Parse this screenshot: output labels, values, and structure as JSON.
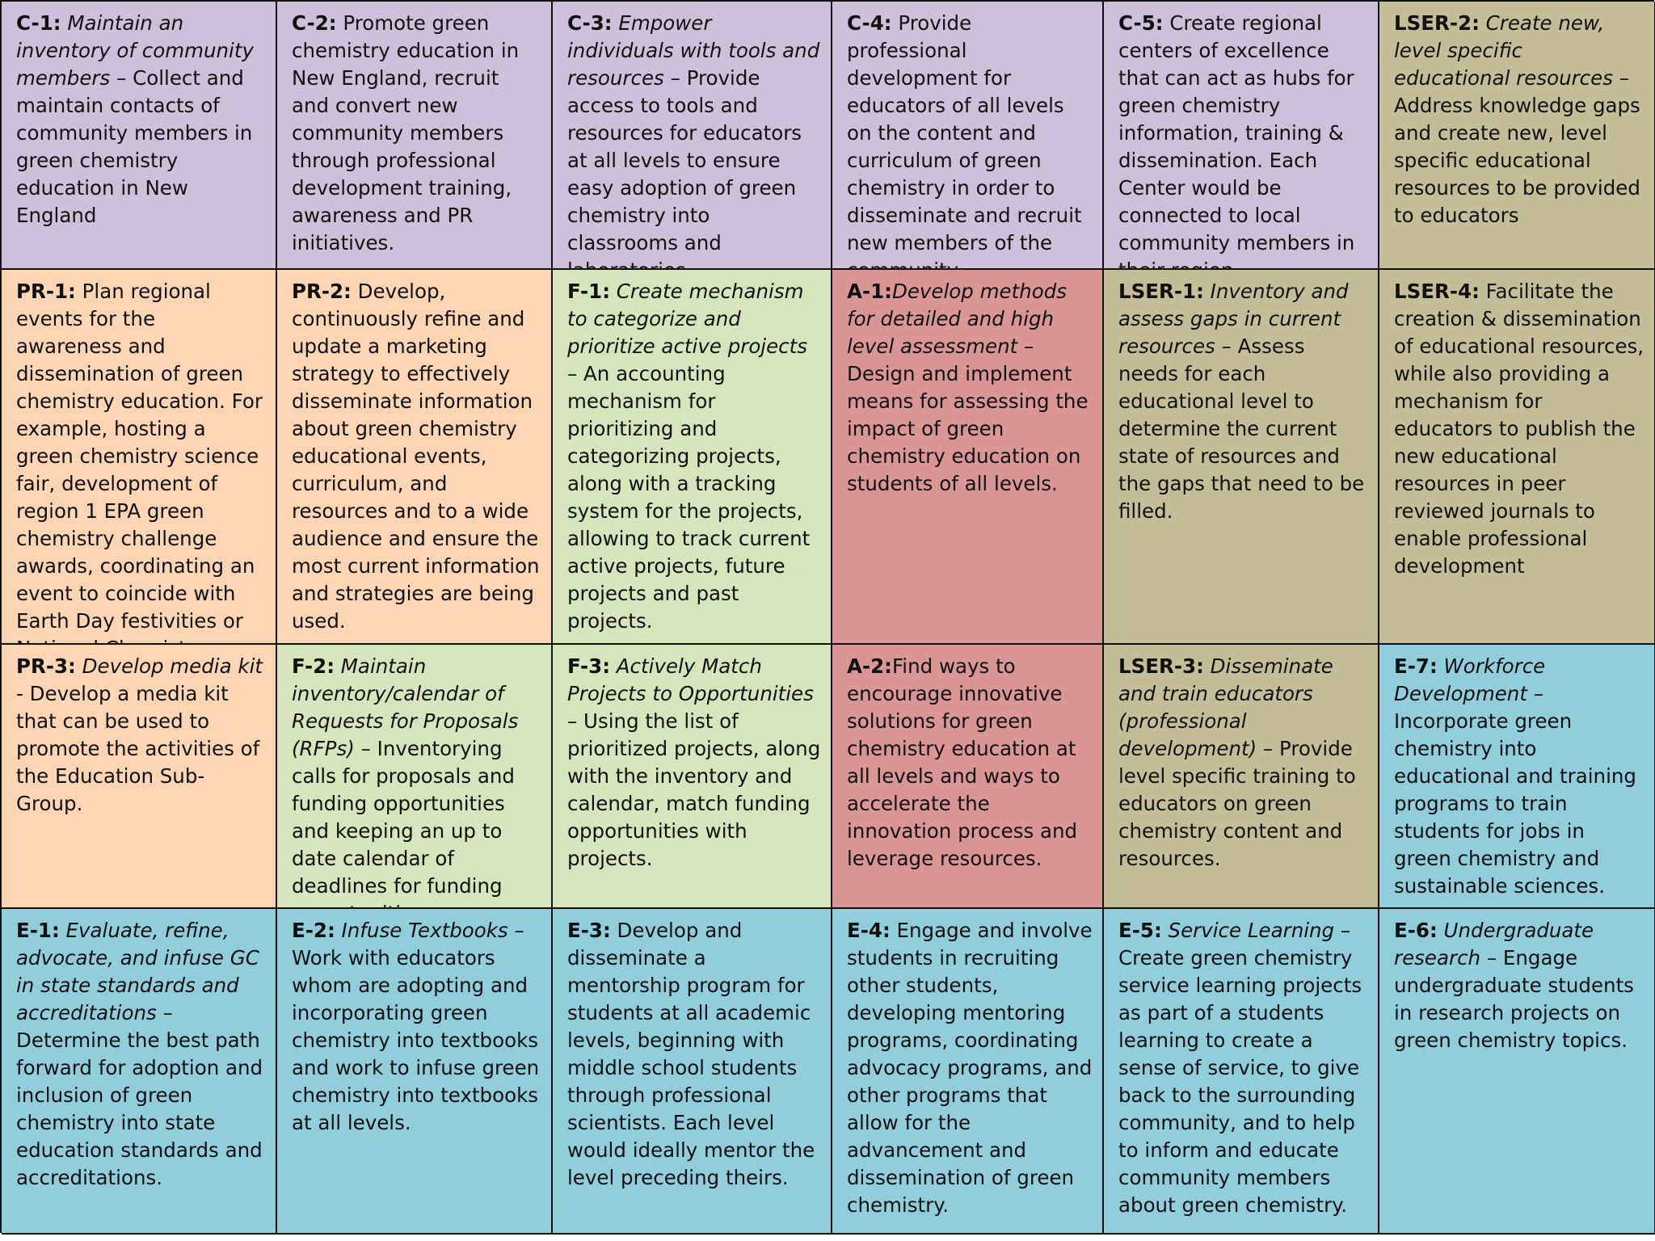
{
  "colors": {
    "purple": "#ccc0da",
    "khaki": "#c4bd97",
    "peach": "#fcd5b4",
    "green": "#d8e4bc",
    "rose": "#da9694",
    "blue": "#92cddc",
    "border": "#111111"
  },
  "cells": [
    {
      "code": "C-1:",
      "lead": "Maintain an inventory of community members",
      "sep": " – ",
      "body": "Collect and maintain contacts of community members in green chemistry education in New England",
      "color": "purple"
    },
    {
      "code": "C-2:",
      "lead": "",
      "sep": " ",
      "body": "Promote green chemistry education in New England, recruit and convert new community members through professional development training, awareness and PR initiatives.",
      "color": "purple"
    },
    {
      "code": "C-3:",
      "lead": "Empower individuals with tools and resources",
      "sep": " – ",
      "body": "Provide access to tools and resources for educators at all levels to ensure easy adoption of green chemistry into classrooms and laboratories",
      "color": "purple"
    },
    {
      "code": "C-4:",
      "lead": "",
      "sep": " ",
      "body": "Provide professional development for educators of all levels on the content and curriculum of green chemistry in order to disseminate and recruit new members of the community.",
      "color": "purple"
    },
    {
      "code": "C-5:",
      "lead": "",
      "sep": " ",
      "body": "Create regional centers of excellence that can act as hubs for green chemistry information, training & dissemination. Each Center would be connected to local community members in their region.",
      "color": "purple"
    },
    {
      "code": "LSER-2:",
      "lead": "Create new, level specific educational resources",
      "sep": " – ",
      "body": "Address knowledge gaps and create new, level specific educational resources to be provided to educators",
      "color": "khaki"
    },
    {
      "code": "PR-1:",
      "lead": "",
      "sep": " ",
      "body": "Plan regional events for the awareness and dissemination of green chemistry education. For example, hosting a green chemistry science fair, development of region 1 EPA green chemistry challenge awards, coordinating an event to coincide with Earth Day festivities or National Chemistry week,",
      "color": "peach"
    },
    {
      "code": "PR-2:",
      "lead": "",
      "sep": " ",
      "body": "Develop, continuously refine and update a marketing strategy to effectively disseminate information about green chemistry educational events, curriculum, and resources and to a wide audience and ensure the most current information and strategies are being used.",
      "color": "peach"
    },
    {
      "code": "F-1:",
      "lead": "Create mechanism to categorize and prioritize active projects",
      "sep": " – ",
      "body": "An accounting mechanism for prioritizing and categorizing projects, along with a tracking system for the projects, allowing to track current active projects, future projects and past projects.",
      "color": "green"
    },
    {
      "code": "A-1:",
      "lead": "Develop methods for detailed and high level assessment",
      "sep": " – ",
      "body": "Design and implement means for assessing the impact of green chemistry education on students of all levels.",
      "color": "rose"
    },
    {
      "code": "LSER-1:",
      "lead": "Inventory and assess gaps in current resources",
      "sep": " – ",
      "body": "Assess needs for each educational level to determine the current state of resources and the gaps that need to be filled.",
      "color": "khaki"
    },
    {
      "code": "LSER-4:",
      "lead": "",
      "sep": " ",
      "body": "Facilitate the creation & dissemination of educational resources, while also providing a mechanism for educators to publish the new educational resources in peer reviewed journals to enable professional development",
      "color": "khaki"
    },
    {
      "code": "PR-3:",
      "lead": "Develop media kit",
      "sep": "  - ",
      "body": "Develop a media kit that can be used to promote the activities of the Education Sub-Group.",
      "color": "peach"
    },
    {
      "code": "F-2:",
      "lead": "Maintain inventory/calendar of Requests for Proposals (RFPs)",
      "sep": " – ",
      "body": "Inventorying calls for proposals and funding opportunities and keeping an up to date calendar of deadlines for funding opportunities.",
      "color": "green"
    },
    {
      "code": "F-3:",
      "lead": "Actively Match Projects to Opportunities",
      "sep": " – ",
      "body": "Using the list of prioritized projects, along with the inventory and calendar, match funding opportunities with projects.",
      "color": "green"
    },
    {
      "code": "A-2:",
      "lead": "",
      "sep": "",
      "body": "Find ways to encourage innovative solutions for green chemistry education at all levels and ways to accelerate the innovation process and leverage resources.",
      "color": "rose"
    },
    {
      "code": "LSER-3:",
      "lead": "Disseminate and train educators (professional development)",
      "sep": " – ",
      "body": "Provide level specific training to educators on green chemistry content and resources.",
      "color": "khaki"
    },
    {
      "code": "E-7:",
      "lead": "Workforce Development",
      "sep": " – ",
      "body": "Incorporate green chemistry into educational and training programs to train students for jobs in green chemistry and sustainable sciences.",
      "color": "blue"
    },
    {
      "code": "E-1:",
      "lead": "Evaluate, refine, advocate, and infuse GC in state standards and accreditations",
      "sep": " – ",
      "body": "Determine the best path forward for adoption and inclusion of green chemistry into state education standards and accreditations.",
      "color": "blue"
    },
    {
      "code": "E-2:",
      "lead": "Infuse Textbooks",
      "sep": " – ",
      "body": "Work with educators whom are adopting and incorporating green chemistry into textbooks and work to infuse green chemistry into textbooks at all levels.",
      "color": "blue"
    },
    {
      "code": "E-3:",
      "lead": "",
      "sep": " ",
      "body": "Develop and disseminate a mentorship program for students at all academic levels, beginning with middle school students through professional scientists. Each level would ideally mentor the level preceding theirs.",
      "color": "blue"
    },
    {
      "code": "E-4:",
      "lead": "",
      "sep": " ",
      "body": "Engage and involve students in recruiting other students, developing mentoring programs, coordinating advocacy programs, and other programs that allow for the advancement and dissemination of green chemistry.",
      "color": "blue"
    },
    {
      "code": "E-5:",
      "lead": "Service Learning",
      "sep": " – ",
      "body": "Create green chemistry service learning projects as part of a students learning to create a sense of service, to give back to the surrounding community, and to help to inform and educate community members about green chemistry.",
      "color": "blue"
    },
    {
      "code": "E-6:",
      "lead": "Undergraduate research",
      "sep": " – ",
      "body": "Engage undergraduate students in research projects on green chemistry topics.",
      "color": "blue"
    }
  ]
}
